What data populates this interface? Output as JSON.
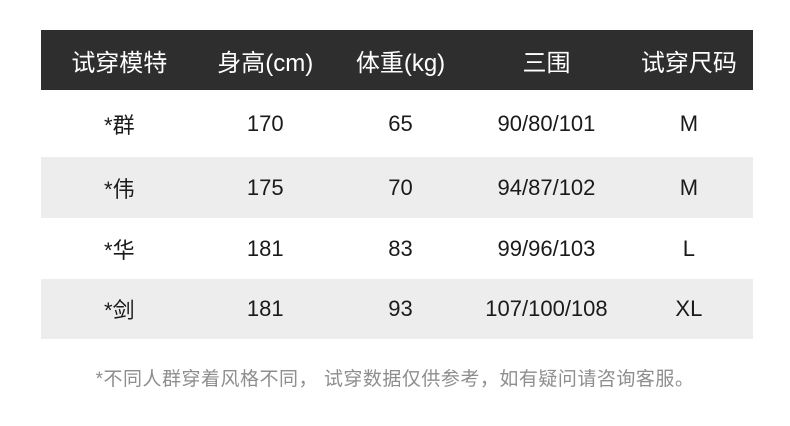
{
  "chart_data": {
    "type": "table",
    "title": "",
    "columns": [
      "试穿模特",
      "身高(cm)",
      "体重(kg)",
      "三围",
      "试穿尺码"
    ],
    "rows": [
      [
        "*群",
        "170",
        "65",
        "90/80/101",
        "M"
      ],
      [
        "*伟",
        "175",
        "70",
        "94/87/102",
        "M"
      ],
      [
        "*华",
        "181",
        "83",
        "99/96/103",
        "L"
      ],
      [
        "*剑",
        "181",
        "93",
        "107/100/108",
        "XL"
      ]
    ],
    "note": "*不同人群穿着风格不同， 试穿数据仅供参考，如有疑问请咨询客服。",
    "layout": {
      "header_bg": "#2e2e2e",
      "header_text_color": "#ffffff",
      "alt_row_bg": "#ededed",
      "body_text_color": "#1a1a1a",
      "note_text_color": "#8e8e8e",
      "zebra": "white/gray alternating, no borders"
    }
  }
}
